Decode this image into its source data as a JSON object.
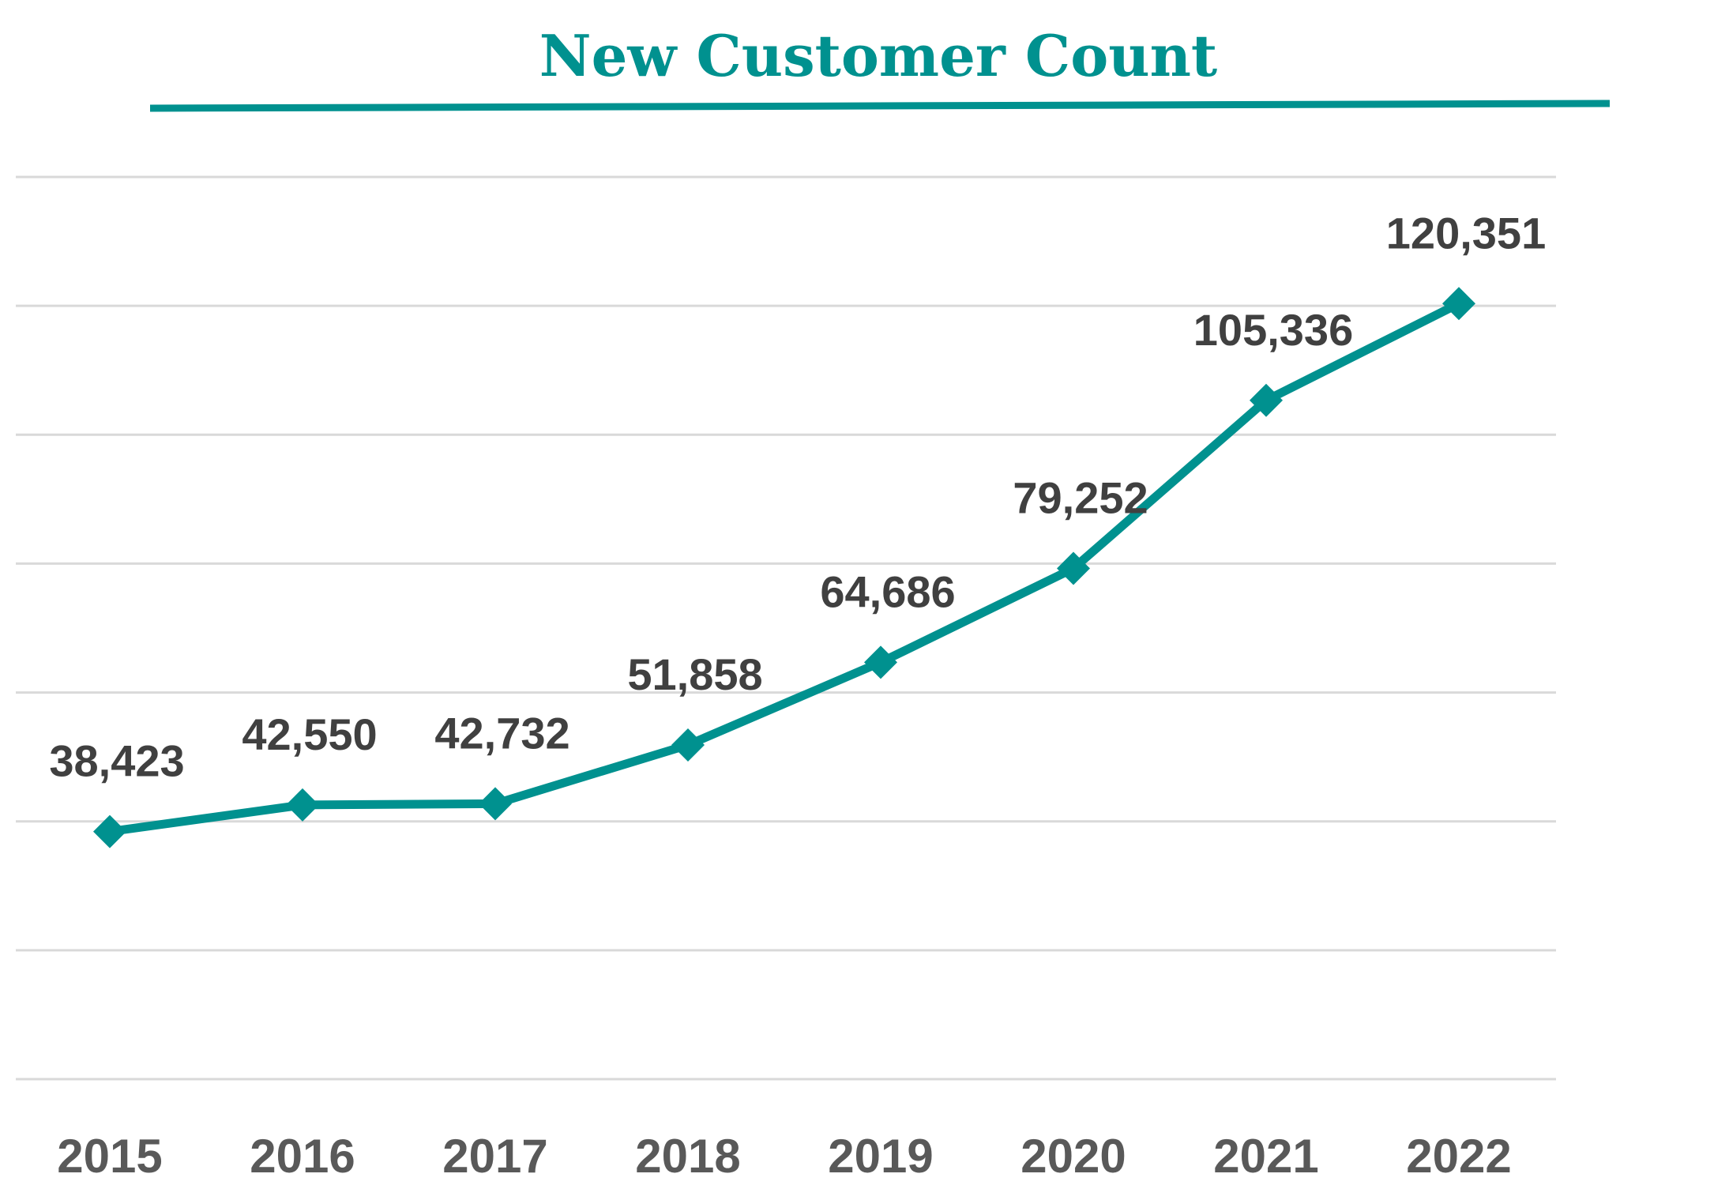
{
  "chart_data": {
    "type": "line",
    "title": "New Customer Count",
    "xlabel": "",
    "ylabel": "",
    "categories": [
      "2015",
      "2016",
      "2017",
      "2018",
      "2019",
      "2020",
      "2021",
      "2022"
    ],
    "values": [
      38423,
      42550,
      42732,
      51858,
      64686,
      79252,
      105336,
      120351
    ],
    "data_labels": [
      "38,423",
      "42,550",
      "42,732",
      "51,858",
      "64,686",
      "79,252",
      "105,336",
      "120,351"
    ],
    "ylim": [
      0,
      140000
    ],
    "y_gridlines": [
      0,
      20000,
      40000,
      60000,
      80000,
      100000,
      120000,
      140000
    ],
    "y_tick_labels_shown": false,
    "grid": true,
    "legend": "none",
    "marker": "diamond",
    "colors": {
      "series": "#00918f",
      "title": "#00918f",
      "grid": "#d9d9d9",
      "labels": "#404040",
      "ticks": "#595959"
    }
  }
}
